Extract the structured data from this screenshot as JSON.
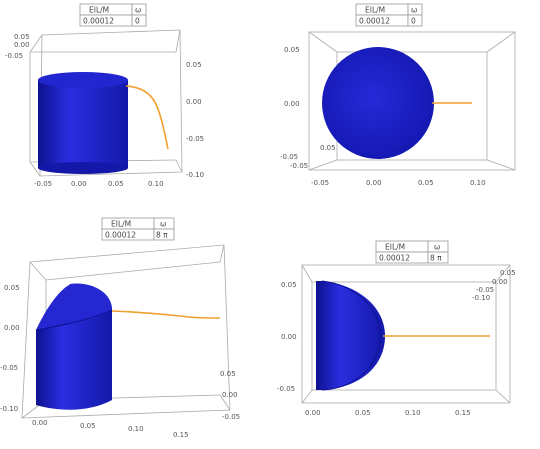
{
  "colors": {
    "body": "#1f22c8",
    "body_dark": "#0d1290",
    "body_light": "#3236e0",
    "rod": "#f0a030",
    "frame": "#aaaaaa"
  },
  "panels": [
    {
      "header": {
        "param": "EIL/M",
        "param_value": "0.00012",
        "omega": "ω",
        "omega_value": "0"
      },
      "x_ticks": [
        "-0.05",
        "0.00",
        "0.05",
        "0.10"
      ],
      "y_ticks": [
        "0.05",
        "0.00",
        "-0.05",
        "-0.10"
      ],
      "z_ticks": [
        "0.05",
        "0.00",
        "-0.05"
      ]
    },
    {
      "header": {
        "param": "EIL/M",
        "param_value": "0.00012",
        "omega": "ω",
        "omega_value": "0"
      },
      "x_ticks": [
        "-0.05",
        "0.00",
        "0.05",
        "0.10"
      ],
      "y_ticks": [
        "0.05",
        "0.00",
        "-0.05"
      ],
      "z_ticks": [
        "-0.05",
        "0.05"
      ]
    },
    {
      "header": {
        "param": "EIL/M",
        "param_value": "0.00012",
        "omega": "ω",
        "omega_value": "8 π"
      },
      "x_ticks": [
        "0.00",
        "0.05",
        "0.10",
        "0.15"
      ],
      "y_ticks": [
        "0.05",
        "0.00",
        "-0.05",
        "-0.10"
      ],
      "z_ticks": [
        "0.05",
        "0.00",
        "-0.05"
      ]
    },
    {
      "header": {
        "param": "EIL/M",
        "param_value": "0.00012",
        "omega": "ω",
        "omega_value": "8 π"
      },
      "x_ticks": [
        "0.00",
        "0.05",
        "0.10",
        "0.15"
      ],
      "y_ticks": [
        "0.05",
        "0.00",
        "-0.05"
      ],
      "z_ticks": [
        "0.05",
        "0.00",
        "-0.05",
        "-0.10"
      ]
    }
  ]
}
